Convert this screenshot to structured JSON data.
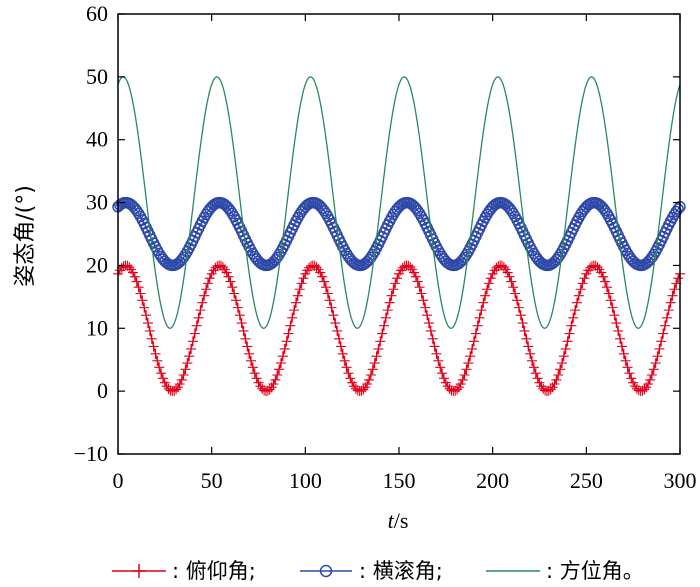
{
  "chart_data": {
    "type": "line",
    "xlabel_var": "t",
    "xlabel_unit": "/s",
    "ylabel": "姿态角/(°)",
    "xlim": [
      0,
      300
    ],
    "ylim": [
      -10,
      60
    ],
    "xticks": [
      0,
      50,
      100,
      150,
      200,
      250,
      300
    ],
    "yticks": [
      -10,
      0,
      10,
      20,
      30,
      40,
      50,
      60
    ],
    "xtick_labels": [
      "0",
      "50",
      "100",
      "150",
      "200",
      "250",
      "300"
    ],
    "ytick_labels": [
      "−10",
      "0",
      "10",
      "20",
      "30",
      "40",
      "50",
      "60"
    ],
    "grid": false,
    "legend_position": "bottom",
    "series": [
      {
        "name": ": 俯仰角;",
        "marker": "plus",
        "color": "#e3001b",
        "model": {
          "offset": 10,
          "amplitude": 10,
          "period": 50,
          "phase_deg": 60,
          "dt": 1
        }
      },
      {
        "name": ": 横滚角;",
        "marker": "circle",
        "color": "#2e48a8",
        "model": {
          "offset": 25,
          "amplitude": 5,
          "period": 50,
          "phase_deg": 60,
          "dt": 1
        }
      },
      {
        "name": ": 方位角。",
        "marker": "none",
        "color": "#2a8a5a",
        "model": {
          "offset": 30,
          "amplitude": 20,
          "period": 50,
          "phase_deg": 70,
          "dt": 0.5
        }
      }
    ]
  }
}
